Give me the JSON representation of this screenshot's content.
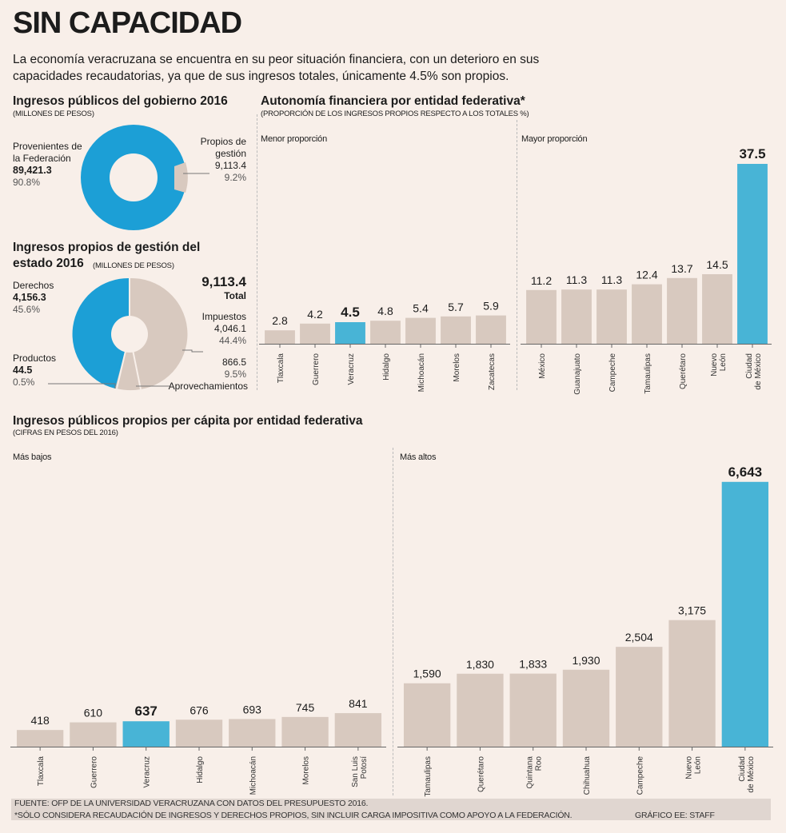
{
  "title": "SIN CAPACIDAD",
  "intro": "La economía veracruzana se encuentra en su peor situación financiera, con un deterioro en sus capacidades recaudatorias, ya que de sus ingresos totales, únicamente 4.5% son propios.",
  "colors": {
    "bar": "#d8c9bf",
    "highlight": "#48b4d6",
    "donut_blue": "#1c9fd6",
    "donut_gray": "#d8c9bf"
  },
  "chart_data": [
    {
      "type": "pie",
      "title": "Ingresos públicos del gobierno 2016",
      "subtitle": "(MILLONES DE PESOS)",
      "slices": [
        {
          "label_line1": "Provenientes de",
          "label_line2": "la Federación",
          "value": 89421.3,
          "value_text": "89,421.3",
          "percent_text": "90.8%"
        },
        {
          "label_line1": "Propios de",
          "label_line2": "gestión",
          "value": 9113.4,
          "value_text": "9,113.4",
          "percent_text": "9.2%"
        }
      ]
    },
    {
      "type": "pie",
      "title_line1": "Ingresos propios de gestión del",
      "title_line2": "estado 2016",
      "subtitle": "(MILLONES DE PESOS)",
      "total_text": "9,113.4",
      "total_label": "Total",
      "slices": [
        {
          "label": "Derechos",
          "value": 4156.3,
          "value_text": "4,156.3",
          "percent_text": "45.6%"
        },
        {
          "label": "Productos",
          "value": 44.5,
          "value_text": "44.5",
          "percent_text": "0.5%"
        },
        {
          "label": "Aprovechamientos",
          "value": 866.5,
          "value_text": "866.5",
          "percent_text": "9.5%"
        },
        {
          "label": "Impuestos",
          "value": 4046.1,
          "value_text": "4,046.1",
          "percent_text": "44.4%"
        }
      ]
    },
    {
      "type": "bar",
      "title": "Autonomía financiera por entidad federativa*",
      "subtitle": "(PROPORCIÓN DE LOS INGRESOS PROPIOS RESPECTO A LOS TOTALES %)",
      "ylim": [
        0,
        40
      ],
      "panels": [
        {
          "label": "Menor proporción",
          "categories": [
            [
              "Tlaxcala"
            ],
            [
              "Guerrero"
            ],
            [
              "Veracruz"
            ],
            [
              "Hidalgo"
            ],
            [
              "Michoacán"
            ],
            [
              "Morelos"
            ],
            [
              "Zacatecas"
            ]
          ],
          "values": [
            2.8,
            4.2,
            4.5,
            4.8,
            5.4,
            5.7,
            5.9
          ],
          "value_labels": [
            "2.8",
            "4.2",
            "4.5",
            "4.8",
            "5.4",
            "5.7",
            "5.9"
          ],
          "highlight": 2
        },
        {
          "label": "Mayor proporción",
          "categories": [
            [
              "México"
            ],
            [
              "Guanajuato"
            ],
            [
              "Campeche"
            ],
            [
              "Tamaulipas"
            ],
            [
              "Querétaro"
            ],
            [
              "Nuevo",
              "León"
            ],
            [
              "Ciudad",
              "de México"
            ]
          ],
          "values": [
            11.2,
            11.3,
            11.3,
            12.4,
            13.7,
            14.5,
            37.5
          ],
          "value_labels": [
            "11.2",
            "11.3",
            "11.3",
            "12.4",
            "13.7",
            "14.5",
            "37.5"
          ],
          "highlight": 6
        }
      ]
    },
    {
      "type": "bar",
      "title": "Ingresos públicos propios per cápita por entidad federativa",
      "subtitle": "(CIFRAS EN PESOS DEL 2016)",
      "ylim": [
        0,
        7200
      ],
      "panels": [
        {
          "label": "Más bajos",
          "categories": [
            [
              "Tlaxcala"
            ],
            [
              "Guerrero"
            ],
            [
              "Veracruz"
            ],
            [
              "Hidalgo"
            ],
            [
              "Michoacán"
            ],
            [
              "Morelos"
            ],
            [
              "San Luis",
              "Potosí"
            ]
          ],
          "values": [
            418,
            610,
            637,
            676,
            693,
            745,
            841
          ],
          "value_labels": [
            "418",
            "610",
            "637",
            "676",
            "693",
            "745",
            "841"
          ],
          "highlight": 2
        },
        {
          "label": "Más altos",
          "categories": [
            [
              "Tamaulipas"
            ],
            [
              "Querétaro"
            ],
            [
              "Quintana",
              "Roo"
            ],
            [
              "Chihuahua"
            ],
            [
              "Campeche"
            ],
            [
              "Nuevo",
              "León"
            ],
            [
              "Ciudad",
              "de México"
            ]
          ],
          "values": [
            1590,
            1830,
            1833,
            1930,
            2504,
            3175,
            6643
          ],
          "value_labels": [
            "1,590",
            "1,830",
            "1,833",
            "1,930",
            "2,504",
            "3,175",
            "6,643"
          ],
          "highlight": 6
        }
      ]
    }
  ],
  "footer": {
    "source": "FUENTE: OFP DE LA UNIVERSIDAD VERACRUZANA CON DATOS DEL PRESUPUESTO 2016.",
    "note": "*SÓLO CONSIDERA RECAUDACIÓN DE INGRESOS Y DERECHOS PROPIOS, SIN INCLUIR CARGA IMPOSITIVA COMO APOYO A LA FEDERACIÓN.",
    "credit": "GRÁFICO EE: STAFF"
  }
}
